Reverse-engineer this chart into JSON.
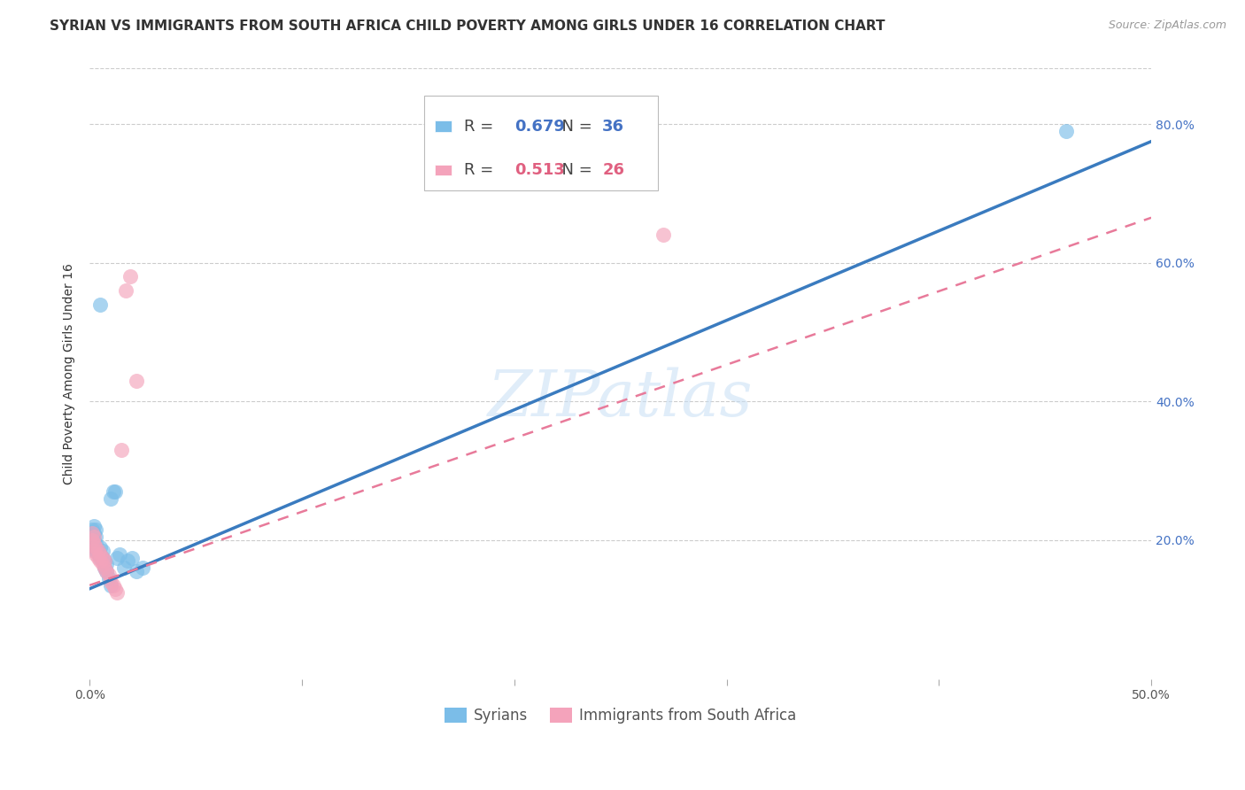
{
  "title": "SYRIAN VS IMMIGRANTS FROM SOUTH AFRICA CHILD POVERTY AMONG GIRLS UNDER 16 CORRELATION CHART",
  "source": "Source: ZipAtlas.com",
  "ylabel": "Child Poverty Among Girls Under 16",
  "xlim": [
    0.0,
    0.5
  ],
  "ylim": [
    0.0,
    0.88
  ],
  "x_tick_vals": [
    0.0,
    0.1,
    0.2,
    0.3,
    0.4,
    0.5
  ],
  "x_tick_labels": [
    "0.0%",
    "",
    "",
    "",
    "",
    "50.0%"
  ],
  "y_tick_vals": [
    0.2,
    0.4,
    0.6,
    0.8
  ],
  "y_tick_labels": [
    "20.0%",
    "40.0%",
    "60.0%",
    "80.0%"
  ],
  "legend1_r": "0.679",
  "legend1_n": "36",
  "legend2_r": "0.513",
  "legend2_n": "26",
  "color_blue": "#7bbde8",
  "color_pink": "#f4a3bb",
  "color_blue_line": "#3a7bbf",
  "color_pink_line": "#e87a9a",
  "watermark": "ZIPatlas",
  "syrians_x": [
    0.001,
    0.001,
    0.001,
    0.002,
    0.002,
    0.002,
    0.002,
    0.003,
    0.003,
    0.003,
    0.003,
    0.004,
    0.004,
    0.005,
    0.005,
    0.005,
    0.006,
    0.006,
    0.007,
    0.007,
    0.008,
    0.008,
    0.009,
    0.01,
    0.01,
    0.011,
    0.012,
    0.013,
    0.014,
    0.016,
    0.018,
    0.02,
    0.022,
    0.025,
    0.46,
    0.005
  ],
  "syrians_y": [
    0.195,
    0.205,
    0.215,
    0.19,
    0.2,
    0.21,
    0.22,
    0.185,
    0.195,
    0.205,
    0.215,
    0.18,
    0.185,
    0.175,
    0.18,
    0.19,
    0.175,
    0.185,
    0.16,
    0.17,
    0.155,
    0.165,
    0.145,
    0.135,
    0.26,
    0.27,
    0.27,
    0.175,
    0.18,
    0.16,
    0.17,
    0.175,
    0.155,
    0.16,
    0.79,
    0.54
  ],
  "southafrica_x": [
    0.001,
    0.001,
    0.002,
    0.002,
    0.002,
    0.003,
    0.003,
    0.004,
    0.004,
    0.005,
    0.005,
    0.006,
    0.006,
    0.007,
    0.007,
    0.008,
    0.009,
    0.01,
    0.011,
    0.012,
    0.013,
    0.015,
    0.017,
    0.019,
    0.022,
    0.27
  ],
  "southafrica_y": [
    0.2,
    0.21,
    0.185,
    0.195,
    0.205,
    0.18,
    0.19,
    0.175,
    0.185,
    0.17,
    0.18,
    0.165,
    0.175,
    0.16,
    0.17,
    0.155,
    0.15,
    0.14,
    0.135,
    0.13,
    0.125,
    0.33,
    0.56,
    0.58,
    0.43,
    0.64
  ],
  "blue_line_x0": 0.0,
  "blue_line_y0": 0.13,
  "blue_line_x1": 0.5,
  "blue_line_y1": 0.775,
  "pink_line_x0": 0.0,
  "pink_line_y0": 0.135,
  "pink_line_x1": 0.5,
  "pink_line_y1": 0.665,
  "title_fontsize": 11,
  "source_fontsize": 9,
  "axis_label_fontsize": 10,
  "tick_fontsize": 10,
  "legend_fontsize": 12,
  "watermark_fontsize": 52
}
